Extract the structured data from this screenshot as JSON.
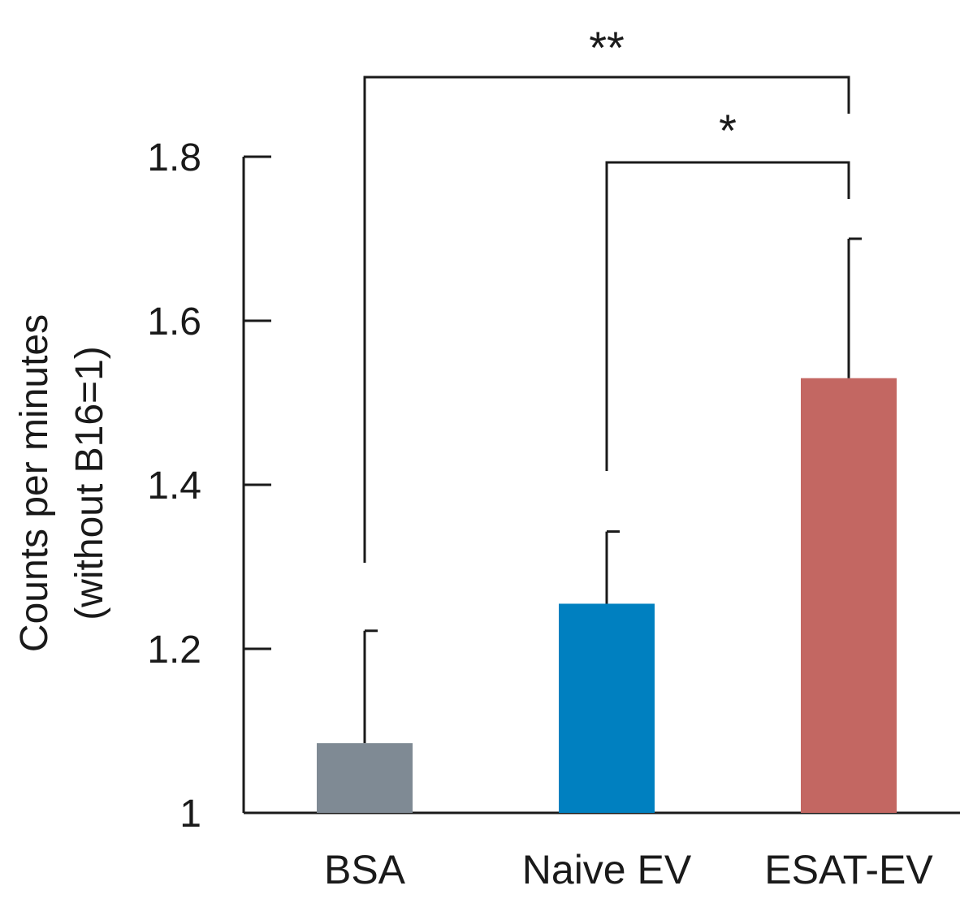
{
  "chart_data": {
    "type": "bar",
    "title": "",
    "xlabel": "",
    "ylabel": "Counts per minutes",
    "ylabel_line2": "(without B16=1)",
    "ylim": [
      1,
      1.8
    ],
    "yticks": [
      1,
      1.2,
      1.4,
      1.6,
      1.8
    ],
    "ytick_labels": [
      "1",
      "1.2",
      "1.4",
      "1.6",
      "1.8"
    ],
    "categories": [
      "BSA",
      "Naive EV",
      "ESAT-EV"
    ],
    "values": [
      1.085,
      1.255,
      1.53
    ],
    "error_upper": [
      1.222,
      1.343,
      1.7
    ],
    "colors": [
      "#7f8a94",
      "#0080c0",
      "#c36762"
    ],
    "grid": false,
    "significance": [
      {
        "from": 0,
        "to": 2,
        "label": "**"
      },
      {
        "from": 1,
        "to": 2,
        "label": "*"
      }
    ]
  }
}
